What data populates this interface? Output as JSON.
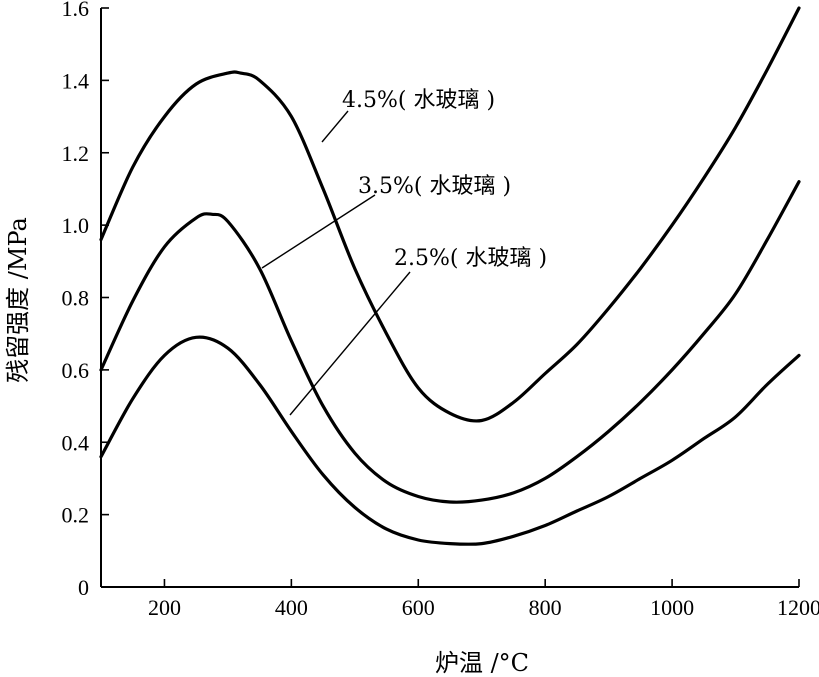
{
  "chart_data": {
    "type": "line",
    "xlabel": "炉温 /°C",
    "ylabel": "残留强度 /MPa",
    "xlim": [
      100,
      1200
    ],
    "ylim": [
      0,
      1.6
    ],
    "xticks": [
      200,
      400,
      600,
      800,
      1000,
      1200
    ],
    "yticks": [
      0,
      0.2,
      0.4,
      0.6,
      0.8,
      1.0,
      1.2,
      1.4,
      1.6
    ],
    "xtick_labels": [
      "200",
      "400",
      "600",
      "800",
      "1000",
      "1200"
    ],
    "ytick_labels": [
      "0",
      "0.2",
      "0.4",
      "0.6",
      "0.8",
      "1.0",
      "1.2",
      "1.4",
      "1.6"
    ],
    "grid": false,
    "series": [
      {
        "name": "4.5%( 水玻璃 )",
        "x": [
          100,
          150,
          200,
          250,
          300,
          320,
          350,
          400,
          450,
          500,
          550,
          600,
          650,
          700,
          750,
          800,
          850,
          900,
          950,
          1000,
          1050,
          1100,
          1150,
          1200
        ],
        "y": [
          0.96,
          1.16,
          1.3,
          1.39,
          1.42,
          1.42,
          1.4,
          1.3,
          1.1,
          0.88,
          0.7,
          0.55,
          0.48,
          0.46,
          0.51,
          0.59,
          0.67,
          0.77,
          0.88,
          1.0,
          1.13,
          1.27,
          1.43,
          1.6
        ]
      },
      {
        "name": "3.5%( 水玻璃 )",
        "x": [
          100,
          150,
          200,
          250,
          275,
          300,
          350,
          400,
          450,
          500,
          550,
          600,
          650,
          700,
          750,
          800,
          850,
          900,
          950,
          1000,
          1050,
          1100,
          1150,
          1200
        ],
        "y": [
          0.6,
          0.79,
          0.94,
          1.02,
          1.03,
          1.01,
          0.88,
          0.68,
          0.5,
          0.37,
          0.29,
          0.25,
          0.235,
          0.24,
          0.26,
          0.3,
          0.36,
          0.43,
          0.51,
          0.6,
          0.7,
          0.81,
          0.96,
          1.12
        ]
      },
      {
        "name": "2.5%( 水玻璃 )",
        "x": [
          100,
          150,
          200,
          250,
          300,
          350,
          400,
          450,
          500,
          550,
          600,
          650,
          700,
          750,
          800,
          850,
          900,
          950,
          1000,
          1050,
          1100,
          1150,
          1200
        ],
        "y": [
          0.36,
          0.52,
          0.64,
          0.69,
          0.66,
          0.56,
          0.43,
          0.31,
          0.22,
          0.16,
          0.13,
          0.12,
          0.12,
          0.14,
          0.17,
          0.21,
          0.25,
          0.3,
          0.35,
          0.41,
          0.47,
          0.56,
          0.64
        ]
      }
    ],
    "annotations": [
      {
        "text": "4.5%( 水玻璃 )",
        "series": 0,
        "anchor_x": 490
      },
      {
        "text": "3.5%( 水玻璃 )",
        "series": 1,
        "anchor_x": 335
      },
      {
        "text": "2.5%( 水玻璃 )",
        "series": 2,
        "anchor_x": 410
      }
    ]
  }
}
